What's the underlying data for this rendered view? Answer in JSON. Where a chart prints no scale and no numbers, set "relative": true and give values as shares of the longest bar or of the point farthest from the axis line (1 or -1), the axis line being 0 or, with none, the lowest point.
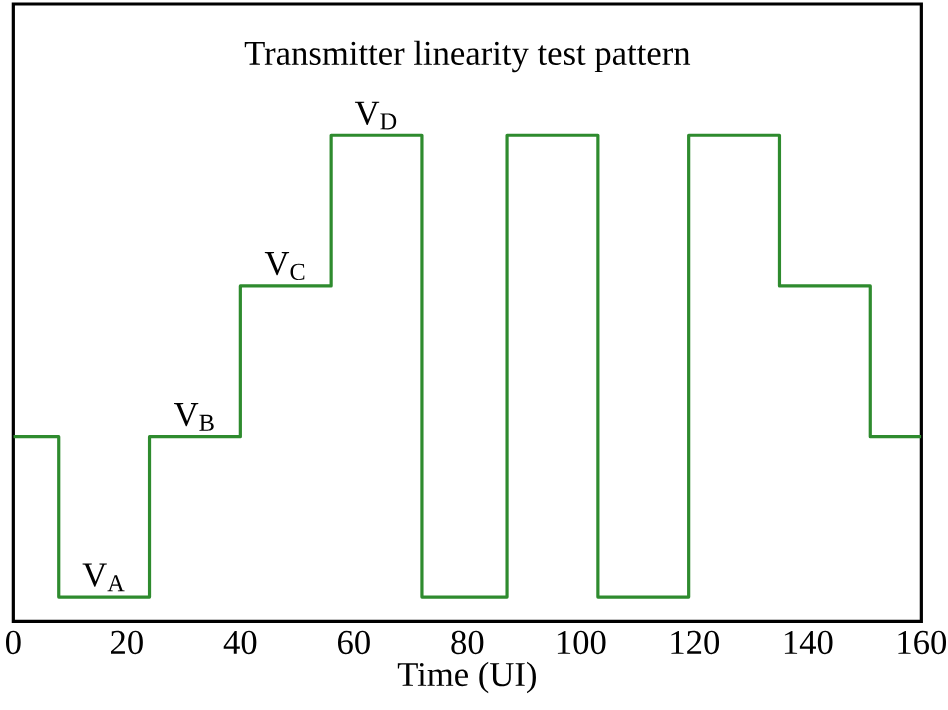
{
  "chart_data": {
    "type": "step",
    "title": "Transmitter linearity test pattern",
    "xlabel": "Time (UI)",
    "relative": true,
    "x": [
      0,
      8,
      24,
      40,
      56,
      72,
      87,
      103,
      119,
      135,
      151,
      160
    ],
    "values": [
      0.38,
      0.05,
      0.38,
      0.69,
      1,
      0.05,
      1,
      0.05,
      1,
      0.69,
      0.38,
      0.38
    ],
    "color": "#2e8b2e",
    "xlim": [
      0,
      160
    ],
    "xticks": [
      0,
      20,
      40,
      60,
      80,
      100,
      120,
      140,
      160
    ],
    "annotations": [
      {
        "text": "V$_{A}$",
        "x": 16,
        "y": 0.05
      },
      {
        "text": "V$_{B}$",
        "x": 32,
        "y": 0.38
      },
      {
        "text": "V$_{C}$",
        "x": 48,
        "y": 0.69
      },
      {
        "text": "V$_{D}$",
        "x": 64,
        "y": 1
      }
    ]
  }
}
